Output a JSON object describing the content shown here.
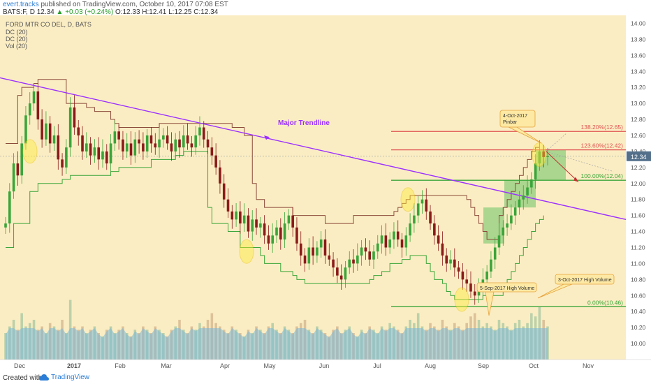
{
  "header": {
    "author": "evert.tracks",
    "published": "published on TradingView.com, October 10, 2017 07:08 EST",
    "symbol_line": "BATS:F, D  12.34",
    "change": "▲ +0.03 (+0.24%)",
    "ohlc_line": "O:12.33 H:12.41 L:12.25 C:12.34",
    "colors": {
      "author": "#2b7dd6",
      "up": "#2a9d2a"
    }
  },
  "legend": {
    "title": "FORD MTR CO DEL, D, BATS",
    "items": [
      "DC (20)",
      "DC (20)",
      "Vol (20)"
    ]
  },
  "footer": {
    "created_with": "Created with",
    "brand": "TradingView"
  },
  "chart_data": {
    "type": "candlestick",
    "symbol": "FORD MTR CO DEL",
    "timeframe": "D",
    "exchange": "BATS",
    "last_price": 12.34,
    "last_price_label": "12.34",
    "ylim": [
      9.8,
      14.1
    ],
    "y_ticks": [
      "14.00",
      "13.80",
      "13.60",
      "13.40",
      "13.20",
      "13.00",
      "12.80",
      "12.60",
      "12.40",
      "12.20",
      "12.00",
      "11.80",
      "11.60",
      "11.40",
      "11.20",
      "11.00",
      "10.80",
      "10.60",
      "10.40",
      "10.20",
      "10.00"
    ],
    "x_ticks": [
      "Dec",
      "2017",
      "Feb",
      "Mar",
      "Apr",
      "May",
      "Jun",
      "Jul",
      "Aug",
      "Sep",
      "Oct",
      "Nov"
    ],
    "close_series": [
      11.5,
      11.9,
      12.25,
      12.1,
      12.5,
      12.85,
      13.0,
      13.15,
      12.8,
      12.55,
      12.75,
      12.5,
      12.6,
      12.3,
      12.2,
      12.45,
      12.95,
      12.7,
      12.6,
      12.4,
      12.5,
      12.35,
      12.45,
      12.3,
      12.4,
      12.25,
      12.5,
      12.65,
      12.55,
      12.4,
      12.5,
      12.35,
      12.55,
      12.5,
      12.4,
      12.6,
      12.5,
      12.45,
      12.55,
      12.6,
      12.5,
      12.4,
      12.55,
      12.45,
      12.6,
      12.5,
      12.45,
      12.6,
      12.7,
      12.55,
      12.45,
      12.35,
      12.2,
      12.0,
      11.8,
      11.65,
      11.55,
      11.65,
      11.5,
      11.6,
      11.4,
      11.55,
      11.45,
      11.5,
      11.35,
      11.25,
      11.35,
      11.45,
      11.3,
      11.5,
      11.6,
      11.45,
      11.25,
      11.1,
      11.0,
      11.2,
      11.1,
      11.2,
      11.3,
      11.1,
      11.05,
      10.95,
      10.85,
      10.8,
      10.95,
      11.05,
      11.0,
      11.1,
      11.2,
      11.15,
      11.05,
      11.15,
      11.25,
      11.35,
      11.2,
      11.3,
      11.4,
      11.3,
      11.2,
      11.35,
      11.5,
      11.6,
      11.75,
      11.8,
      11.65,
      11.5,
      11.35,
      11.25,
      11.1,
      11.0,
      11.05,
      10.95,
      10.9,
      10.8,
      10.75,
      10.65,
      10.6,
      10.7,
      10.8,
      10.9,
      11.05,
      11.2,
      11.35,
      11.45,
      11.5,
      11.6,
      11.7,
      11.8,
      11.85,
      11.95,
      12.05,
      12.25,
      12.4,
      12.33,
      12.34
    ],
    "volume_series": [
      0.4,
      0.5,
      0.6,
      0.45,
      0.7,
      0.5,
      0.55,
      0.6,
      0.45,
      0.5,
      0.4,
      0.55,
      0.5,
      0.45,
      0.6,
      0.4,
      0.9,
      0.5,
      0.45,
      0.5,
      0.4,
      0.45,
      0.5,
      0.4,
      0.35,
      0.45,
      0.5,
      0.4,
      0.45,
      0.5,
      0.4,
      0.35,
      0.45,
      0.4,
      0.5,
      0.45,
      0.4,
      0.5,
      0.45,
      0.4,
      0.35,
      0.45,
      0.5,
      0.6,
      0.45,
      0.4,
      0.5,
      0.45,
      0.55,
      0.5,
      0.6,
      0.7,
      0.55,
      0.5,
      0.45,
      0.4,
      0.5,
      0.45,
      0.4,
      0.35,
      0.45,
      0.4,
      0.5,
      0.45,
      0.4,
      0.5,
      0.55,
      0.45,
      0.4,
      0.5,
      0.45,
      0.4,
      0.5,
      0.55,
      0.6,
      0.45,
      0.4,
      0.5,
      0.45,
      0.4,
      0.35,
      0.45,
      0.5,
      0.4,
      0.45,
      0.5,
      0.4,
      0.35,
      0.45,
      0.4,
      0.5,
      0.45,
      0.4,
      0.5,
      0.45,
      0.55,
      0.5,
      0.45,
      0.4,
      0.5,
      0.6,
      0.55,
      0.7,
      0.5,
      0.45,
      0.55,
      0.5,
      0.45,
      0.6,
      0.5,
      0.45,
      0.55,
      0.5,
      0.45,
      0.55,
      0.65,
      0.7,
      0.6,
      0.5,
      0.55,
      0.5,
      0.45,
      0.6,
      0.55,
      0.5,
      0.45,
      0.55,
      0.6,
      0.5,
      0.55,
      0.7,
      0.65,
      0.8,
      0.6,
      0.5
    ],
    "donchian_upper": [
      12.5,
      12.5,
      12.5,
      13.1,
      13.2,
      13.2,
      13.2,
      13.25,
      13.3,
      13.3,
      13.3,
      13.3,
      13.3,
      13.3,
      13.3,
      13.0,
      13.0,
      13.0,
      13.0,
      13.0,
      12.95,
      12.95,
      12.9,
      12.9,
      12.9,
      12.9,
      12.8,
      12.75,
      12.7,
      12.7,
      12.7,
      12.7,
      12.7,
      12.7,
      12.7,
      12.7,
      12.7,
      12.7,
      12.75,
      12.75,
      12.75,
      12.75,
      12.75,
      12.75,
      12.75,
      12.75,
      12.75,
      12.75,
      12.75,
      12.75,
      12.75,
      12.75,
      12.75,
      12.75,
      12.75,
      12.75,
      12.7,
      12.7,
      12.7,
      12.6,
      12.6,
      12.0,
      11.8,
      11.8,
      11.7,
      11.7,
      11.7,
      11.7,
      11.7,
      11.7,
      11.7,
      11.6,
      11.6,
      11.6,
      11.6,
      11.6,
      11.6,
      11.6,
      11.6,
      11.5,
      11.5,
      11.5,
      11.5,
      11.5,
      11.5,
      11.5,
      11.6,
      11.6,
      11.6,
      11.6,
      11.6,
      11.6,
      11.6,
      11.6,
      11.6,
      11.6,
      11.65,
      11.7,
      11.75,
      11.8,
      11.85,
      11.85,
      11.85,
      11.85,
      11.85,
      11.85,
      11.85,
      11.85,
      11.85,
      11.85,
      11.85,
      11.85,
      11.85,
      11.85,
      11.8,
      11.7,
      11.6,
      11.5,
      11.4,
      11.3,
      11.3,
      11.3,
      11.6,
      11.7,
      11.8,
      11.9,
      12.0,
      12.1,
      12.2,
      12.3,
      12.4,
      12.45,
      12.45
    ],
    "donchian_lower": [
      11.2,
      11.2,
      11.5,
      11.5,
      11.5,
      11.5,
      11.9,
      11.9,
      12.0,
      12.0,
      12.0,
      12.0,
      12.0,
      12.0,
      12.05,
      12.05,
      12.1,
      12.1,
      12.1,
      12.1,
      12.1,
      12.1,
      12.1,
      12.1,
      12.1,
      12.1,
      12.15,
      12.15,
      12.2,
      12.2,
      12.2,
      12.2,
      12.2,
      12.2,
      12.2,
      12.2,
      12.3,
      12.3,
      12.3,
      12.3,
      12.3,
      12.3,
      12.35,
      12.35,
      12.4,
      12.4,
      12.4,
      12.4,
      12.4,
      12.4,
      11.7,
      11.5,
      11.5,
      11.5,
      11.5,
      11.4,
      11.4,
      11.4,
      11.2,
      11.2,
      11.2,
      11.2,
      11.2,
      11.1,
      11.0,
      11.0,
      11.0,
      11.0,
      10.9,
      10.9,
      10.9,
      10.85,
      10.8,
      10.8,
      10.75,
      10.75,
      10.75,
      10.75,
      10.75,
      10.75,
      10.75,
      10.75,
      10.75,
      10.75,
      10.75,
      10.75,
      10.75,
      10.75,
      10.75,
      10.75,
      10.8,
      10.85,
      10.85,
      10.9,
      10.9,
      11.0,
      11.0,
      11.0,
      11.05,
      11.05,
      11.1,
      11.1,
      11.1,
      11.1,
      11.0,
      10.9,
      10.8,
      10.8,
      10.75,
      10.65,
      10.6,
      10.55,
      10.55,
      10.55,
      10.55,
      10.55,
      10.55,
      10.55,
      10.6,
      10.6,
      10.6,
      10.6,
      10.6,
      10.7,
      10.8,
      10.9,
      11.0,
      11.1,
      11.2,
      11.3,
      11.4,
      11.5,
      11.55,
      11.6
    ],
    "horizontal_levels": [
      {
        "label": "138.20%(12.65)",
        "value": 12.65,
        "color": "#e05555"
      },
      {
        "label": "123.60%(12.42)",
        "value": 12.42,
        "color": "#e05555"
      },
      {
        "label": "100.00%(12.04)",
        "value": 12.04,
        "color": "#3aa53a"
      },
      {
        "label": "0.00%(10.46)",
        "value": 10.46,
        "color": "#3aa53a"
      }
    ],
    "trendline": {
      "label": "Major Trendline",
      "start": {
        "i": 0,
        "v": 13.32
      },
      "end": {
        "i": 136,
        "v": 11.55
      },
      "color": "#9b30ff"
    },
    "callouts": [
      {
        "text": "4-Oct-2017",
        "text2": "Pinbar"
      },
      {
        "text": "5-Sep-2017 High Volume",
        "text2": ""
      },
      {
        "text": "3-Oct-2017 High Volume",
        "text2": ""
      }
    ],
    "colors": {
      "background": "#fbedc3",
      "up": "#3aa53a",
      "down": "#8b1a1a",
      "volume_ma": "#7ab8d9",
      "donchian_upper": "#8b4a3a",
      "donchian_lower": "#3aa53a",
      "last_price_bg": "#536f8a"
    }
  }
}
